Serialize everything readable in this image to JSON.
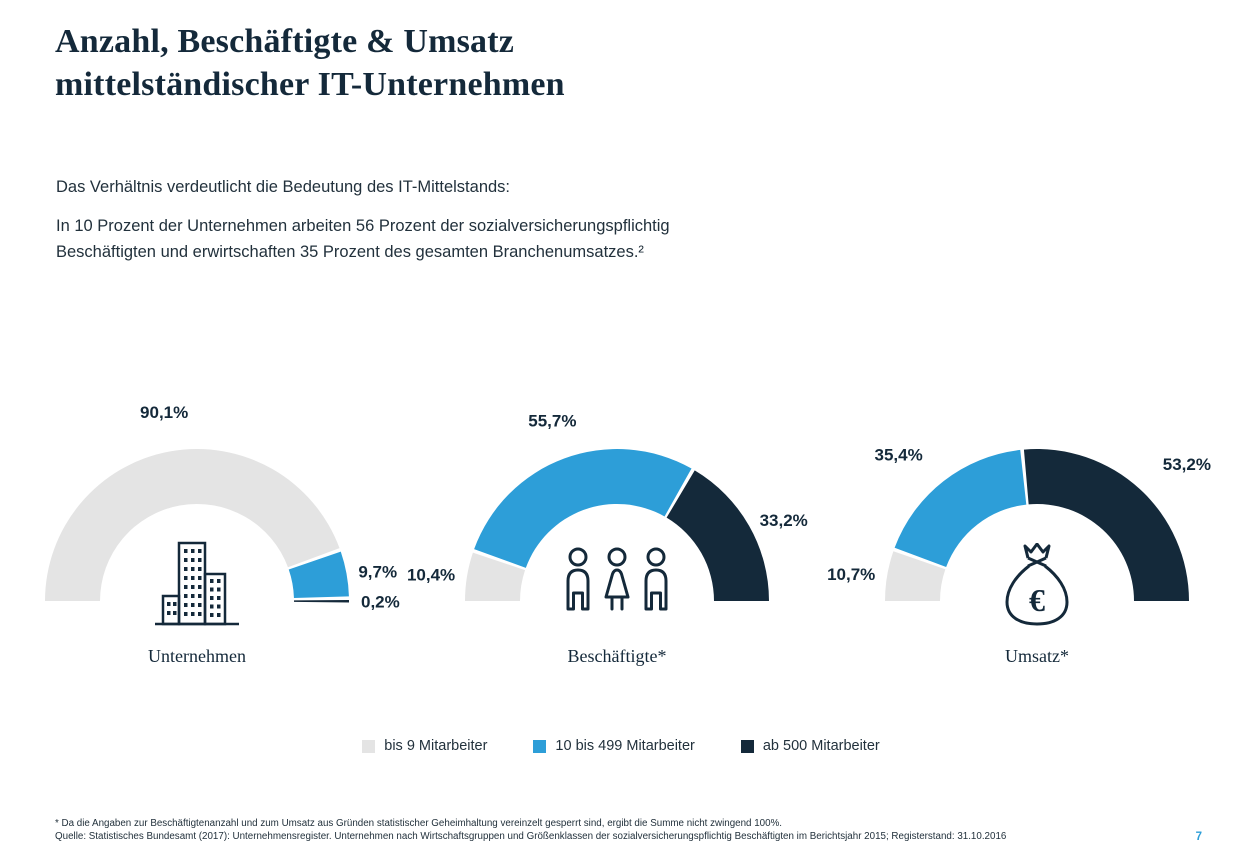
{
  "page": {
    "title_line1": "Anzahl, Beschäftigte & Umsatz",
    "title_line2": "mittelständischer IT-Unternehmen",
    "intro_line": "Das Verhältnis verdeutlicht die Bedeutung des IT-Mittelstands:",
    "intro_paragraph": "In 10 Prozent der Unternehmen arbeiten 56 Prozent der sozialversicherungspflichtig Beschäftigten und erwirtschaften 35 Prozent des gesamten Branchenumsatzes.²",
    "footnote_star": "* Da die Angaben zur Beschäftigtenanzahl und zum Umsatz aus Gründen statistischer Geheimhaltung vereinzelt gesperrt sind, ergibt die Summe nicht zwingend 100%.",
    "footnote_source": "Quelle: Statistisches Bundesamt (2017): Unternehmensregister. Unternehmen nach Wirtschaftsgruppen und Größenklassen der sozialversicherungspflichtig Beschäftigten im Berichtsjahr 2015; Registerstand: 31.10.2016",
    "page_number": "7"
  },
  "colors": {
    "dark_navy": "#14293a",
    "blue": "#2d9ed8",
    "light_gray": "#e4e4e4"
  },
  "legend": [
    {
      "label": "bis 9 Mitarbeiter",
      "color": "#e4e4e4"
    },
    {
      "label": "10 bis 499 Mitarbeiter",
      "color": "#2d9ed8"
    },
    {
      "label": "ab 500 Mitarbeiter",
      "color": "#14293a"
    }
  ],
  "chart_data": {
    "type": "semicircle-donut",
    "unit": "%",
    "categories": [
      "bis 9 Mitarbeiter",
      "10 bis 499 Mitarbeiter",
      "ab 500 Mitarbeiter"
    ],
    "segment_colors": [
      "#e4e4e4",
      "#2d9ed8",
      "#14293a"
    ],
    "legend_position": "bottom",
    "charts": [
      {
        "title": "Unternehmen",
        "icon": "buildings",
        "values": [
          90.1,
          9.7,
          0.2
        ],
        "labels": [
          "90,1%",
          "9,7%",
          "0,2%"
        ]
      },
      {
        "title": "Beschäftigte*",
        "icon": "people",
        "values": [
          10.4,
          55.7,
          33.2
        ],
        "labels": [
          "10,4%",
          "55,7%",
          "33,2%"
        ]
      },
      {
        "title": "Umsatz*",
        "icon": "money-bag",
        "values": [
          10.7,
          35.4,
          53.2
        ],
        "labels": [
          "10,7%",
          "35,4%",
          "53,2%"
        ]
      }
    ]
  }
}
